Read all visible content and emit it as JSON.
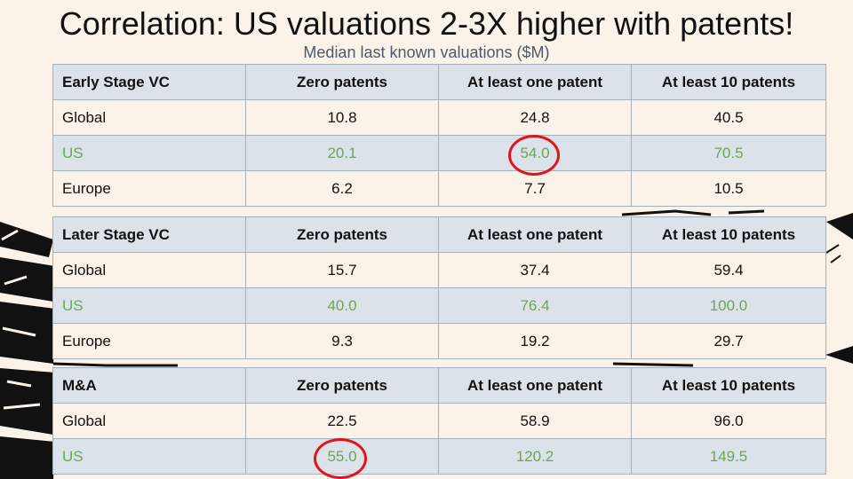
{
  "title": "Correlation: US valuations 2-3X higher with patents!",
  "subtitle": "Median last known valuations ($M)",
  "colors": {
    "us_green": "#6aa84f",
    "highlight_red": "#e0141c",
    "header_bg": "#dbe2e9"
  },
  "tables": [
    {
      "header": [
        "Early Stage VC",
        "Zero patents",
        "At least one patent",
        "At least 10 patents"
      ],
      "rows": [
        [
          "Global",
          "10.8",
          "24.8",
          "40.5"
        ],
        [
          "US",
          "20.1",
          "54.0",
          "70.5"
        ],
        [
          "Europe",
          "6.2",
          "7.7",
          "10.5"
        ]
      ]
    },
    {
      "header": [
        "Later Stage VC",
        "Zero patents",
        "At least one patent",
        "At least 10 patents"
      ],
      "rows": [
        [
          "Global",
          "15.7",
          "37.4",
          "59.4"
        ],
        [
          "US",
          "40.0",
          "76.4",
          "100.0"
        ],
        [
          "Europe",
          "9.3",
          "19.2",
          "29.7"
        ]
      ]
    },
    {
      "header": [
        "M&A",
        "Zero patents",
        "At least one patent",
        "At least 10 patents"
      ],
      "rows": [
        [
          "Global",
          "22.5",
          "58.9",
          "96.0"
        ],
        [
          "US",
          "55.0",
          "120.2",
          "149.5"
        ]
      ]
    }
  ]
}
